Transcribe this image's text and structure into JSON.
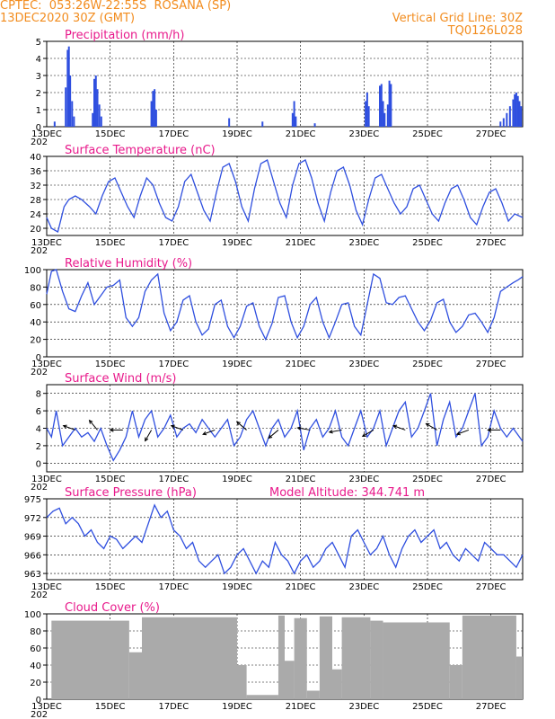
{
  "header": {
    "line1": "CPTEC:  053:26W-22:55S  ROSANA (SP)",
    "line2": "13DEC2020 30Z (GMT)",
    "right1": "Vertical Grid Line: 30Z",
    "right2": "TQ0126L028"
  },
  "x_axis": {
    "labels": [
      "13DEC",
      "15DEC",
      "17DEC",
      "19DEC",
      "21DEC",
      "23DEC",
      "25DEC",
      "27DEC"
    ],
    "year_fragment": "202",
    "days_total": 15
  },
  "colors": {
    "line": "#2f4fdf",
    "title": "#e8198b",
    "header": "#f28c1e",
    "cloud": "#aaaaaa"
  },
  "chart_data": [
    {
      "type": "bar",
      "title": "Precipitation (mm/h)",
      "ylim": [
        0,
        5
      ],
      "yticks": [
        0,
        1,
        2,
        3,
        4,
        5
      ],
      "events": [
        {
          "day": 0.25,
          "value": 0.3
        },
        {
          "day": 0.6,
          "value": 2.3
        },
        {
          "day": 0.66,
          "value": 4.5
        },
        {
          "day": 0.7,
          "value": 4.7
        },
        {
          "day": 0.74,
          "value": 3.0
        },
        {
          "day": 0.8,
          "value": 1.5
        },
        {
          "day": 0.86,
          "value": 0.6
        },
        {
          "day": 1.45,
          "value": 0.8
        },
        {
          "day": 1.5,
          "value": 2.8
        },
        {
          "day": 1.55,
          "value": 3.0
        },
        {
          "day": 1.6,
          "value": 2.2
        },
        {
          "day": 1.66,
          "value": 1.3
        },
        {
          "day": 1.72,
          "value": 0.6
        },
        {
          "day": 3.3,
          "value": 1.5
        },
        {
          "day": 3.35,
          "value": 2.1
        },
        {
          "day": 3.4,
          "value": 2.2
        },
        {
          "day": 3.45,
          "value": 1.0
        },
        {
          "day": 5.75,
          "value": 0.5
        },
        {
          "day": 6.8,
          "value": 0.3
        },
        {
          "day": 7.75,
          "value": 0.8
        },
        {
          "day": 7.8,
          "value": 1.5
        },
        {
          "day": 7.85,
          "value": 0.6
        },
        {
          "day": 8.45,
          "value": 0.2
        },
        {
          "day": 10.05,
          "value": 1.5
        },
        {
          "day": 10.1,
          "value": 2.0
        },
        {
          "day": 10.15,
          "value": 1.2
        },
        {
          "day": 10.5,
          "value": 2.4
        },
        {
          "day": 10.55,
          "value": 2.5
        },
        {
          "day": 10.6,
          "value": 1.5
        },
        {
          "day": 10.65,
          "value": 0.8
        },
        {
          "day": 10.75,
          "value": 1.3
        },
        {
          "day": 10.8,
          "value": 2.7
        },
        {
          "day": 10.85,
          "value": 2.5
        },
        {
          "day": 14.3,
          "value": 0.3
        },
        {
          "day": 14.4,
          "value": 0.5
        },
        {
          "day": 14.5,
          "value": 0.8
        },
        {
          "day": 14.6,
          "value": 1.2
        },
        {
          "day": 14.7,
          "value": 1.6
        },
        {
          "day": 14.75,
          "value": 1.9
        },
        {
          "day": 14.8,
          "value": 2.0
        },
        {
          "day": 14.85,
          "value": 1.8
        },
        {
          "day": 14.9,
          "value": 1.5
        },
        {
          "day": 14.95,
          "value": 1.2
        }
      ]
    },
    {
      "type": "line",
      "title": "Surface Temperature (nC)",
      "ylim": [
        18,
        40
      ],
      "yticks": [
        20,
        24,
        28,
        32,
        36,
        40
      ],
      "x": [
        0,
        0.15,
        0.35,
        0.55,
        0.7,
        0.9,
        1.1,
        1.35,
        1.55,
        1.75,
        1.95,
        2.15,
        2.35,
        2.55,
        2.75,
        2.95,
        3.15,
        3.35,
        3.55,
        3.75,
        3.95,
        4.15,
        4.35,
        4.55,
        4.75,
        4.95,
        5.15,
        5.35,
        5.55,
        5.75,
        5.95,
        6.15,
        6.35,
        6.55,
        6.75,
        6.95,
        7.15,
        7.35,
        7.55,
        7.75,
        7.95,
        8.15,
        8.35,
        8.55,
        8.75,
        8.95,
        9.15,
        9.35,
        9.55,
        9.75,
        9.95,
        10.15,
        10.35,
        10.55,
        10.75,
        10.95,
        11.15,
        11.35,
        11.55,
        11.75,
        11.95,
        12.15,
        12.35,
        12.55,
        12.75,
        12.95,
        13.15,
        13.35,
        13.55,
        13.75,
        13.95,
        14.15,
        14.35,
        14.55,
        14.75,
        15
      ],
      "y": [
        23,
        20,
        19,
        26,
        28,
        29,
        28,
        26,
        24,
        29,
        33,
        34,
        30,
        26,
        23,
        29,
        34,
        32,
        27,
        23,
        22,
        26,
        33,
        35,
        30,
        25,
        22,
        30,
        37,
        38,
        33,
        26,
        22,
        31,
        38,
        39,
        33,
        27,
        23,
        32,
        38,
        39,
        34,
        27,
        22,
        30,
        36,
        37,
        32,
        25,
        21,
        28,
        34,
        35,
        31,
        27,
        24,
        26,
        31,
        32,
        28,
        24,
        22,
        27,
        31,
        32,
        28,
        23,
        21,
        26,
        30,
        31,
        27,
        22,
        24,
        23
      ]
    },
    {
      "type": "line",
      "title": "Relative Humidity (%)",
      "ylim": [
        0,
        100
      ],
      "yticks": [
        0,
        20,
        40,
        60,
        80,
        100
      ],
      "x": [
        0,
        0.15,
        0.3,
        0.5,
        0.7,
        0.9,
        1.1,
        1.3,
        1.5,
        1.7,
        1.9,
        2.1,
        2.3,
        2.5,
        2.7,
        2.9,
        3.1,
        3.3,
        3.5,
        3.7,
        3.9,
        4.1,
        4.3,
        4.5,
        4.7,
        4.9,
        5.1,
        5.3,
        5.5,
        5.7,
        5.9,
        6.1,
        6.3,
        6.5,
        6.7,
        6.9,
        7.1,
        7.3,
        7.5,
        7.7,
        7.9,
        8.1,
        8.3,
        8.5,
        8.7,
        8.9,
        9.1,
        9.3,
        9.5,
        9.7,
        9.9,
        10.1,
        10.3,
        10.5,
        10.7,
        10.9,
        11.1,
        11.3,
        11.5,
        11.7,
        11.9,
        12.1,
        12.3,
        12.5,
        12.7,
        12.9,
        13.1,
        13.3,
        13.5,
        13.7,
        13.9,
        14.1,
        14.3,
        14.5,
        14.7,
        14.85,
        15
      ],
      "y": [
        72,
        98,
        100,
        75,
        55,
        52,
        70,
        85,
        60,
        70,
        80,
        82,
        88,
        45,
        35,
        45,
        75,
        88,
        95,
        50,
        30,
        40,
        65,
        70,
        40,
        25,
        32,
        60,
        65,
        35,
        22,
        35,
        58,
        62,
        35,
        20,
        38,
        68,
        70,
        40,
        22,
        35,
        60,
        68,
        40,
        22,
        40,
        60,
        62,
        35,
        25,
        60,
        95,
        90,
        62,
        60,
        68,
        70,
        55,
        40,
        30,
        42,
        62,
        66,
        40,
        28,
        35,
        48,
        50,
        40,
        28,
        45,
        75,
        80,
        85,
        88,
        92
      ]
    },
    {
      "type": "line",
      "title": "Surface Wind (m/s)",
      "ylim": [
        -1,
        9
      ],
      "yticks": [
        0,
        2,
        4,
        6,
        8
      ],
      "x": [
        0,
        0.15,
        0.3,
        0.5,
        0.7,
        0.9,
        1.1,
        1.3,
        1.5,
        1.7,
        1.9,
        2.1,
        2.3,
        2.5,
        2.7,
        2.9,
        3.1,
        3.3,
        3.5,
        3.7,
        3.9,
        4.1,
        4.3,
        4.5,
        4.7,
        4.9,
        5.1,
        5.3,
        5.5,
        5.7,
        5.9,
        6.1,
        6.3,
        6.5,
        6.7,
        6.9,
        7.1,
        7.3,
        7.5,
        7.7,
        7.9,
        8.1,
        8.3,
        8.5,
        8.7,
        8.9,
        9.1,
        9.3,
        9.5,
        9.7,
        9.9,
        10.1,
        10.3,
        10.5,
        10.7,
        10.9,
        11.1,
        11.3,
        11.5,
        11.7,
        11.9,
        12.1,
        12.3,
        12.5,
        12.7,
        12.9,
        13.1,
        13.3,
        13.5,
        13.7,
        13.9,
        14.1,
        14.3,
        14.5,
        14.7,
        15
      ],
      "y": [
        4,
        3,
        6,
        2,
        3,
        4,
        3,
        3.5,
        2.5,
        4,
        2,
        0.3,
        1.5,
        3,
        6,
        3,
        5,
        6,
        3,
        4,
        5.5,
        3,
        4,
        4.5,
        3.5,
        5,
        4,
        3,
        4,
        5,
        2,
        3,
        5,
        6,
        4,
        2,
        4,
        5,
        3,
        4,
        6,
        1.5,
        4,
        5,
        3,
        4,
        6,
        3,
        2,
        4,
        6,
        3,
        4,
        6,
        2,
        4,
        6,
        7,
        3,
        4,
        6,
        8,
        2,
        5,
        7,
        3,
        4,
        6,
        8,
        2,
        3,
        6,
        4,
        3,
        4,
        2.5
      ],
      "arrows_day": [
        0.9,
        1.6,
        2.4,
        3.3,
        4.3,
        5.3,
        6.3,
        7.3,
        8.3,
        9.3,
        10.3,
        11.3,
        12.3,
        13.3,
        14.3
      ],
      "arrows_dir_deg": [
        200,
        230,
        180,
        120,
        200,
        160,
        220,
        140,
        190,
        170,
        150,
        200,
        210,
        160,
        180
      ]
    },
    {
      "type": "line",
      "title": "Surface Pressure (hPa)",
      "annotation": "Model Altitude: 344.741  m",
      "ylim": [
        962,
        975
      ],
      "yticks": [
        963,
        966,
        969,
        972,
        975
      ],
      "x": [
        0,
        0.2,
        0.4,
        0.6,
        0.8,
        1.0,
        1.2,
        1.4,
        1.6,
        1.8,
        2.0,
        2.2,
        2.4,
        2.6,
        2.8,
        3.0,
        3.2,
        3.4,
        3.6,
        3.8,
        4.0,
        4.2,
        4.4,
        4.6,
        4.8,
        5.0,
        5.2,
        5.4,
        5.6,
        5.8,
        6.0,
        6.2,
        6.4,
        6.6,
        6.8,
        7.0,
        7.2,
        7.4,
        7.6,
        7.8,
        8.0,
        8.2,
        8.4,
        8.6,
        8.8,
        9.0,
        9.2,
        9.4,
        9.6,
        9.8,
        10.0,
        10.2,
        10.4,
        10.6,
        10.8,
        11.0,
        11.2,
        11.4,
        11.6,
        11.8,
        12.0,
        12.2,
        12.4,
        12.6,
        12.8,
        13.0,
        13.2,
        13.4,
        13.6,
        13.8,
        14.0,
        14.2,
        14.4,
        14.6,
        14.8,
        15
      ],
      "y": [
        972,
        973,
        973.5,
        971,
        972,
        971,
        969,
        970,
        968,
        967,
        969,
        968.5,
        967,
        968,
        969,
        968,
        971,
        974,
        972,
        973,
        970,
        969,
        967,
        968,
        965,
        964,
        965,
        966,
        963,
        964,
        966,
        967,
        965,
        963,
        965,
        964,
        968,
        966,
        965,
        963,
        965,
        966,
        964,
        965,
        967,
        968,
        966,
        964,
        969,
        970,
        968,
        966,
        967,
        969,
        966,
        964,
        967,
        969,
        970,
        968,
        969,
        970,
        967,
        968,
        966,
        965,
        967,
        966,
        965,
        968,
        967,
        966,
        966,
        965,
        964,
        966
      ]
    },
    {
      "type": "bar",
      "title": "Cloud Cover (%)",
      "ylim": [
        0,
        100
      ],
      "yticks": [
        0,
        20,
        40,
        60,
        80,
        100
      ],
      "segments": [
        {
          "from": 0.0,
          "to": 0.15,
          "value": 0
        },
        {
          "from": 0.15,
          "to": 2.6,
          "value": 92
        },
        {
          "from": 2.6,
          "to": 3.0,
          "value": 55
        },
        {
          "from": 3.0,
          "to": 6.0,
          "value": 96
        },
        {
          "from": 6.0,
          "to": 6.3,
          "value": 40
        },
        {
          "from": 6.3,
          "to": 7.3,
          "value": 5
        },
        {
          "from": 7.3,
          "to": 7.5,
          "value": 98
        },
        {
          "from": 7.5,
          "to": 7.8,
          "value": 45
        },
        {
          "from": 7.8,
          "to": 8.2,
          "value": 95
        },
        {
          "from": 8.2,
          "to": 8.6,
          "value": 10
        },
        {
          "from": 8.6,
          "to": 9.0,
          "value": 97
        },
        {
          "from": 9.0,
          "to": 9.3,
          "value": 35
        },
        {
          "from": 9.3,
          "to": 10.2,
          "value": 96
        },
        {
          "from": 10.2,
          "to": 10.6,
          "value": 92
        },
        {
          "from": 10.6,
          "to": 12.7,
          "value": 90
        },
        {
          "from": 12.7,
          "to": 13.1,
          "value": 40
        },
        {
          "from": 13.1,
          "to": 14.8,
          "value": 98
        },
        {
          "from": 14.8,
          "to": 15.0,
          "value": 50
        }
      ]
    }
  ]
}
